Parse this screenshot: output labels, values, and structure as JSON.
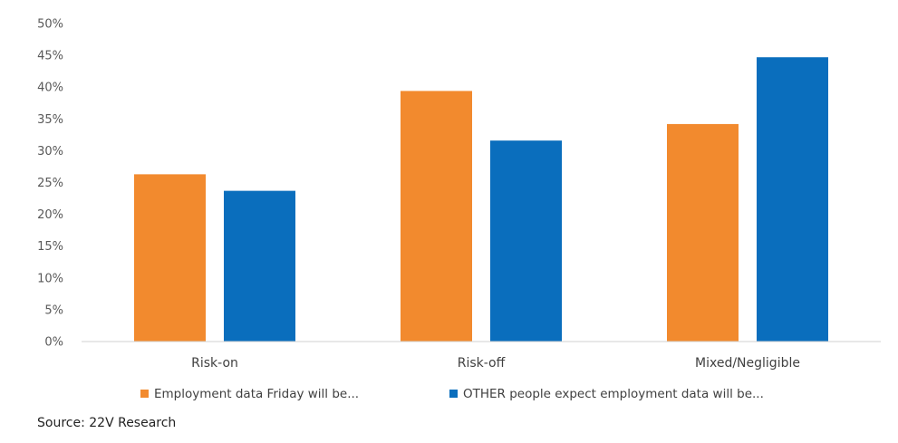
{
  "chart_data": {
    "type": "bar",
    "categories": [
      "Risk-on",
      "Risk-off",
      "Mixed/Negligible"
    ],
    "series": [
      {
        "name": "Employment data Friday will be...",
        "color": "#F28A2E",
        "values": [
          26.3,
          39.4,
          34.2
        ]
      },
      {
        "name": "OTHER people expect employment data will be...",
        "color": "#0A6EBD",
        "values": [
          23.7,
          31.6,
          44.7
        ]
      }
    ],
    "yticks": [
      "0%",
      "5%",
      "10%",
      "15%",
      "20%",
      "25%",
      "30%",
      "35%",
      "40%",
      "45%",
      "50%"
    ],
    "ylim": [
      0,
      50
    ],
    "title": "",
    "xlabel": "",
    "ylabel": "",
    "grid": false,
    "legend": "bottom",
    "source": "Source: 22V Research"
  }
}
